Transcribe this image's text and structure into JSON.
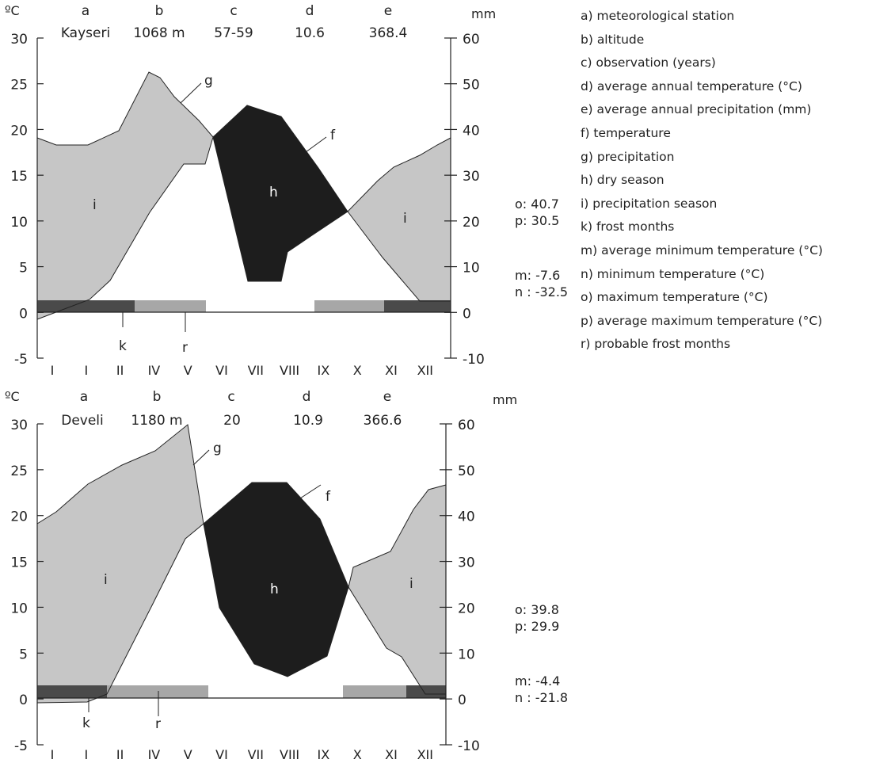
{
  "legend": [
    "a)  meteorological station",
    "b) altitude",
    "c)  observation (years)",
    "d)  average annual temperature (°C)",
    "e)  average annual precipitation (mm)",
    "f)  temperature",
    "g)  precipitation",
    "h)  dry season",
    "i)   precipitation season",
    "k)  frost months",
    "m) average minimum temperature (°C)",
    "n)  minimum temperature (°C)",
    "o)  maximum temperature (°C)",
    "p)  average maximum temperature (°C)",
    "r)  probable frost months"
  ],
  "colors": {
    "precipitation_season": "#c6c6c6",
    "dry_season": "#1d1d1d",
    "frost_months": "#4a4a4a",
    "probable_frost_months": "#a7a7a7",
    "axis": "#222222"
  },
  "chart_data": [
    {
      "type": "climate-diagram",
      "station": "Kayseri",
      "header_letters": [
        "a",
        "b",
        "c",
        "d",
        "e"
      ],
      "header_values": [
        "Kayseri",
        "1068 m",
        "57-59",
        "10.6",
        "368.4"
      ],
      "left_unit": "ºC",
      "right_unit": "mm",
      "months": [
        "I",
        "I",
        "II",
        "IV",
        "V",
        "VI",
        "VII",
        "VIII",
        "IX",
        "X",
        "XI",
        "XII"
      ],
      "left_ticks": [
        30,
        25,
        20,
        15,
        10,
        5,
        0,
        -5
      ],
      "right_ticks": [
        60,
        50,
        40,
        30,
        20,
        10,
        0,
        -10
      ],
      "ylim_temperature": [
        -5,
        30
      ],
      "ylim_precipitation": [
        -10,
        60
      ],
      "temperature": {
        "months": [
          0,
          0.9,
          2,
          3,
          4,
          5,
          6,
          7,
          8,
          9,
          10,
          11,
          11.7,
          12
        ],
        "values": [
          -0.5,
          1.5,
          3.5,
          10.8,
          16.5,
          19,
          3.5,
          3.5,
          8,
          11,
          6,
          1.6,
          1.3,
          1.3
        ]
      },
      "precipitation": {
        "months": [
          0,
          0.5,
          2,
          3,
          4.5,
          4.9,
          6,
          7,
          8,
          9,
          10,
          11,
          12
        ],
        "values": [
          38,
          36.5,
          36.5,
          40,
          52.5,
          51,
          39,
          45,
          43,
          32,
          22,
          32,
          37
        ]
      },
      "frost_months_bar": [
        0,
        1.4
      ],
      "probable_frost_bars": [
        [
          1.4,
          2.4
        ],
        [
          3.9,
          4.9
        ]
      ],
      "frost_months_bar_end": [
        4.9,
        5.9
      ],
      "series_extra": "k frost months, r probable frost months",
      "labels": {
        "g": "g",
        "f": "f",
        "h": "h",
        "i_left": "i",
        "i_right": "i",
        "k": "k",
        "r": "r"
      },
      "stats": {
        "o": "o: 40.7",
        "p": "p: 30.5",
        "m": "m: -7.6",
        "n": "n : -32.5"
      }
    },
    {
      "type": "climate-diagram",
      "station": "Develi",
      "header_letters": [
        "a",
        "b",
        "c",
        "d",
        "e"
      ],
      "header_values": [
        "Develi",
        "1180 m",
        "20",
        "10.9",
        "366.6"
      ],
      "left_unit": "ºC",
      "right_unit": "mm",
      "months": [
        "I",
        "I",
        "II",
        "IV",
        "V",
        "VI",
        "VII",
        "VIII",
        "IX",
        "X",
        "XI",
        "XII"
      ],
      "left_ticks": [
        30,
        25,
        20,
        15,
        10,
        5,
        0,
        -5
      ],
      "right_ticks": [
        60,
        50,
        40,
        30,
        20,
        10,
        0,
        -10
      ],
      "ylim_temperature": [
        -5,
        30
      ],
      "ylim_precipitation": [
        -10,
        60
      ],
      "temperature": {
        "months": [
          0,
          0.7,
          1.7,
          2,
          3,
          4,
          5,
          5.6,
          6,
          7,
          8,
          9,
          10,
          11,
          11.7,
          12
        ],
        "values": [
          -0.3,
          -0.3,
          0,
          1.5,
          11.5,
          17.5,
          10.5,
          7.5,
          3.5,
          2.5,
          3.5,
          13,
          5.5,
          4,
          1.5,
          1.5
        ]
      },
      "precipitation": {
        "months": [
          0,
          0.6,
          1.5,
          2.5,
          3.5,
          4,
          4.5,
          5.5,
          6,
          7,
          7.5,
          8,
          9,
          10,
          11,
          12
        ],
        "values": [
          30.5,
          33,
          39,
          44,
          47.5,
          53,
          35,
          45,
          45,
          44.5,
          36,
          26,
          31,
          33,
          34,
          50
        ]
      },
      "labels": {
        "g": "g",
        "f": "f",
        "h": "h",
        "i_left": "i",
        "i_right": "i",
        "k": "k",
        "r": "r"
      },
      "stats": {
        "o": "o: 39.8",
        "p": "p: 29.9",
        "m": "m: -4.4",
        "n": "n : -21.8"
      }
    }
  ]
}
